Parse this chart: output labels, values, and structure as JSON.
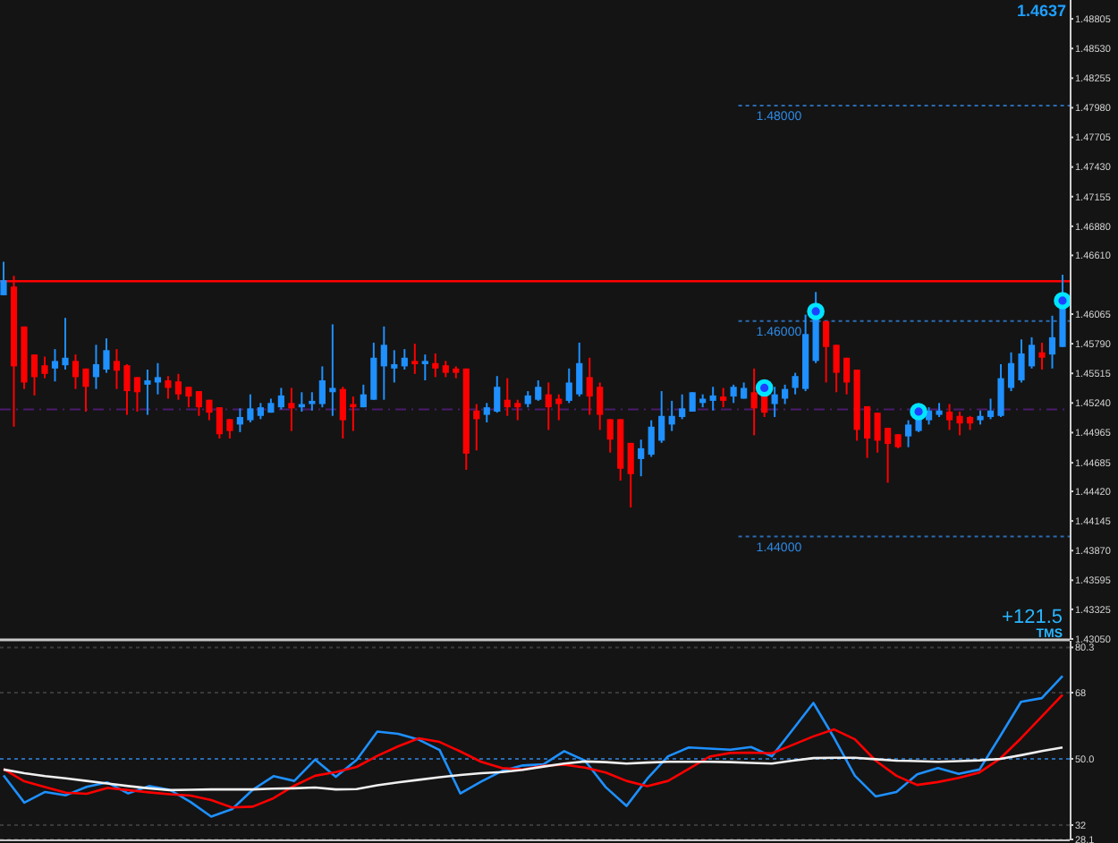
{
  "chart_data": [
    {
      "type": "candlestick",
      "ylim": [
        1.4305,
        1.4898
      ],
      "tick_labels": "y",
      "yticks": [
        {
          "value": 1.48805,
          "label": "1.48805"
        },
        {
          "value": 1.4853,
          "label": "1.48530"
        },
        {
          "value": 1.48255,
          "label": "1.48255"
        },
        {
          "value": 1.4798,
          "label": "1.47980"
        },
        {
          "value": 1.47705,
          "label": "1.47705"
        },
        {
          "value": 1.4743,
          "label": "1.47430"
        },
        {
          "value": 1.47155,
          "label": "1.47155"
        },
        {
          "value": 1.4688,
          "label": "1.46880"
        },
        {
          "value": 1.4661,
          "label": "1.46610"
        },
        {
          "value": 1.46065,
          "label": "1.46065"
        },
        {
          "value": 1.4579,
          "label": "1.45790"
        },
        {
          "value": 1.45515,
          "label": "1.45515"
        },
        {
          "value": 1.4524,
          "label": "1.45240"
        },
        {
          "value": 1.44965,
          "label": "1.44965"
        },
        {
          "value": 1.44685,
          "label": "1.44685"
        },
        {
          "value": 1.4442,
          "label": "1.44420"
        },
        {
          "value": 1.44145,
          "label": "1.44145"
        },
        {
          "value": 1.4387,
          "label": "1.43870"
        },
        {
          "value": 1.43595,
          "label": "1.43595"
        },
        {
          "value": 1.43325,
          "label": "1.43325"
        },
        {
          "value": 1.4305,
          "label": "1.43050"
        }
      ],
      "categories": [
        null,
        null,
        null,
        null,
        null,
        null,
        null,
        null,
        null,
        null,
        null,
        null,
        null,
        null,
        null,
        null,
        null,
        null,
        null,
        null,
        null,
        null,
        null,
        null,
        null,
        null,
        null,
        null,
        null,
        null,
        null,
        null,
        null,
        null,
        null,
        null,
        null,
        null,
        null,
        null,
        null,
        null,
        null,
        null,
        null,
        null,
        null,
        null,
        null,
        null,
        null,
        null,
        null,
        null,
        null,
        null,
        null,
        null,
        null,
        null,
        null,
        null,
        null,
        null,
        null,
        null,
        null,
        null,
        null,
        null,
        null,
        null,
        null,
        null,
        null,
        null,
        null,
        null,
        null,
        null,
        null,
        null,
        null,
        null,
        null,
        null,
        null,
        null,
        null,
        null,
        null,
        null,
        null,
        null,
        null,
        null,
        null,
        null,
        null,
        null,
        null,
        null,
        null,
        null
      ],
      "ohlc": [
        [
          1.4624,
          1.4655,
          1.4624,
          1.4638
        ],
        [
          1.4632,
          1.4642,
          1.4502,
          1.4558
        ],
        [
          1.4595,
          1.4595,
          1.4537,
          1.4543
        ],
        [
          1.4569,
          1.4569,
          1.4531,
          1.4548
        ],
        [
          1.4559,
          1.4567,
          1.4547,
          1.4551
        ],
        [
          1.4556,
          1.4574,
          1.4544,
          1.4563
        ],
        [
          1.4559,
          1.4603,
          1.4555,
          1.4566
        ],
        [
          1.4563,
          1.4569,
          1.4537,
          1.4548
        ],
        [
          1.4556,
          1.4556,
          1.4516,
          1.4539
        ],
        [
          1.4548,
          1.4578,
          1.4537,
          1.456
        ],
        [
          1.4555,
          1.4584,
          1.4552,
          1.4573
        ],
        [
          1.4563,
          1.4574,
          1.4537,
          1.4554
        ],
        [
          1.4559,
          1.456,
          1.4513,
          1.4535
        ],
        [
          1.4548,
          1.4548,
          1.4516,
          1.4534
        ],
        [
          1.4541,
          1.4555,
          1.4513,
          1.4545
        ],
        [
          1.4543,
          1.4561,
          1.4532,
          1.4548
        ],
        [
          1.4545,
          1.4549,
          1.4528,
          1.4538
        ],
        [
          1.4544,
          1.4551,
          1.4527,
          1.4532
        ],
        [
          1.4539,
          1.4539,
          1.452,
          1.453
        ],
        [
          1.4535,
          1.4535,
          1.4512,
          1.452
        ],
        [
          1.4527,
          1.4527,
          1.4508,
          1.4515
        ],
        [
          1.452,
          1.452,
          1.4491,
          1.4495
        ],
        [
          1.4509,
          1.4509,
          1.4491,
          1.4498
        ],
        [
          1.4504,
          1.4519,
          1.4497,
          1.4511
        ],
        [
          1.4508,
          1.4532,
          1.4506,
          1.4519
        ],
        [
          1.4512,
          1.4524,
          1.4509,
          1.452
        ],
        [
          1.4515,
          1.4528,
          1.4515,
          1.4524
        ],
        [
          1.452,
          1.4538,
          1.4518,
          1.4531
        ],
        [
          1.4524,
          1.4538,
          1.4498,
          1.4519
        ],
        [
          1.452,
          1.4534,
          1.4516,
          1.4523
        ],
        [
          1.4523,
          1.4534,
          1.4517,
          1.4526
        ],
        [
          1.4523,
          1.4558,
          1.452,
          1.4545
        ],
        [
          1.4534,
          1.4597,
          1.4512,
          1.4538
        ],
        [
          1.4537,
          1.4539,
          1.4491,
          1.4508
        ],
        [
          1.4523,
          1.453,
          1.4498,
          1.452
        ],
        [
          1.452,
          1.4541,
          1.452,
          1.4532
        ],
        [
          1.4527,
          1.458,
          1.4527,
          1.4566
        ],
        [
          1.4558,
          1.4595,
          1.4527,
          1.4578
        ],
        [
          1.4556,
          1.4573,
          1.4543,
          1.456
        ],
        [
          1.4558,
          1.4574,
          1.4555,
          1.4566
        ],
        [
          1.4563,
          1.4579,
          1.4551,
          1.456
        ],
        [
          1.456,
          1.4569,
          1.4545,
          1.4563
        ],
        [
          1.4561,
          1.457,
          1.4548,
          1.4556
        ],
        [
          1.4559,
          1.4563,
          1.4548,
          1.4552
        ],
        [
          1.4556,
          1.4558,
          1.4547,
          1.4552
        ],
        [
          1.4556,
          1.4556,
          1.4462,
          1.4477
        ],
        [
          1.4517,
          1.4523,
          1.448,
          1.4509
        ],
        [
          1.4513,
          1.4524,
          1.4506,
          1.452
        ],
        [
          1.4516,
          1.4549,
          1.4515,
          1.4539
        ],
        [
          1.4527,
          1.4547,
          1.4512,
          1.452
        ],
        [
          1.4524,
          1.4527,
          1.4508,
          1.452
        ],
        [
          1.4523,
          1.4535,
          1.452,
          1.4531
        ],
        [
          1.4527,
          1.4545,
          1.4526,
          1.4539
        ],
        [
          1.4532,
          1.4543,
          1.4499,
          1.452
        ],
        [
          1.4528,
          1.4532,
          1.4508,
          1.4523
        ],
        [
          1.4526,
          1.4556,
          1.4524,
          1.4543
        ],
        [
          1.4532,
          1.458,
          1.453,
          1.4561
        ],
        [
          1.4548,
          1.4566,
          1.4513,
          1.453
        ],
        [
          1.4539,
          1.4543,
          1.4499,
          1.4513
        ],
        [
          1.4509,
          1.4509,
          1.4478,
          1.449
        ],
        [
          1.4509,
          1.4509,
          1.4452,
          1.4463
        ],
        [
          1.4487,
          1.4487,
          1.4427,
          1.4458
        ],
        [
          1.4472,
          1.449,
          1.4456,
          1.4482
        ],
        [
          1.4476,
          1.4508,
          1.4474,
          1.4502
        ],
        [
          1.4489,
          1.4535,
          1.4487,
          1.4512
        ],
        [
          1.4504,
          1.4526,
          1.4498,
          1.4512
        ],
        [
          1.4511,
          1.4532,
          1.4509,
          1.4519
        ],
        [
          1.4516,
          1.4534,
          1.4516,
          1.4534
        ],
        [
          1.4524,
          1.4532,
          1.452,
          1.4528
        ],
        [
          1.4526,
          1.4539,
          1.4517,
          1.4531
        ],
        [
          1.453,
          1.4538,
          1.452,
          1.4526
        ],
        [
          1.453,
          1.4541,
          1.4524,
          1.4539
        ],
        [
          1.4528,
          1.4543,
          1.4528,
          1.4538
        ],
        [
          1.4534,
          1.4556,
          1.4494,
          1.4519
        ],
        [
          1.453,
          1.4532,
          1.4511,
          1.4515
        ],
        [
          1.4523,
          1.4539,
          1.4511,
          1.4532
        ],
        [
          1.4528,
          1.4541,
          1.4523,
          1.4537
        ],
        [
          1.4538,
          1.4552,
          1.4532,
          1.4549
        ],
        [
          1.4537,
          1.4606,
          1.4535,
          1.4588
        ],
        [
          1.4563,
          1.4627,
          1.4561,
          1.461
        ],
        [
          1.46,
          1.46,
          1.4543,
          1.4576
        ],
        [
          1.4578,
          1.4578,
          1.4534,
          1.4552
        ],
        [
          1.4566,
          1.4566,
          1.4532,
          1.4543
        ],
        [
          1.4555,
          1.4555,
          1.4489,
          1.4499
        ],
        [
          1.4521,
          1.4521,
          1.4473,
          1.4491
        ],
        [
          1.4515,
          1.4515,
          1.4478,
          1.4489
        ],
        [
          1.4501,
          1.4501,
          1.445,
          1.4486
        ],
        [
          1.4495,
          1.4495,
          1.4482,
          1.4483
        ],
        [
          1.4493,
          1.4508,
          1.4483,
          1.4504
        ],
        [
          1.4498,
          1.4517,
          1.4497,
          1.4512
        ],
        [
          1.4508,
          1.452,
          1.4504,
          1.4517
        ],
        [
          1.4513,
          1.4524,
          1.4511,
          1.4517
        ],
        [
          1.4516,
          1.4523,
          1.4499,
          1.4508
        ],
        [
          1.4512,
          1.4516,
          1.4494,
          1.4505
        ],
        [
          1.4511,
          1.4512,
          1.4499,
          1.4505
        ],
        [
          1.4508,
          1.4517,
          1.4504,
          1.4512
        ],
        [
          1.4511,
          1.4528,
          1.4509,
          1.4517
        ],
        [
          1.4512,
          1.456,
          1.4511,
          1.4547
        ],
        [
          1.4538,
          1.4571,
          1.4535,
          1.4561
        ],
        [
          1.4545,
          1.4583,
          1.4543,
          1.457
        ],
        [
          1.4558,
          1.4585,
          1.4556,
          1.4578
        ],
        [
          1.4571,
          1.458,
          1.4555,
          1.4566
        ],
        [
          1.4569,
          1.4605,
          1.4556,
          1.4585
        ],
        [
          1.4576,
          1.4643,
          1.4576,
          1.4618
        ]
      ],
      "series": [
        {
          "type": "scatter",
          "color": "#00e5ff",
          "marker": "circle",
          "values": [
            null,
            null,
            null,
            null,
            null,
            null,
            null,
            null,
            null,
            null,
            null,
            null,
            null,
            null,
            null,
            null,
            null,
            null,
            null,
            null,
            null,
            null,
            null,
            null,
            null,
            null,
            null,
            null,
            null,
            null,
            null,
            null,
            null,
            null,
            null,
            null,
            null,
            null,
            null,
            null,
            null,
            null,
            null,
            null,
            null,
            null,
            null,
            null,
            null,
            null,
            null,
            null,
            null,
            null,
            null,
            null,
            null,
            null,
            null,
            null,
            null,
            null,
            null,
            null,
            null,
            null,
            null,
            null,
            null,
            null,
            null,
            null,
            null,
            null,
            1.4538,
            null,
            null,
            null,
            null,
            1.4609,
            null,
            null,
            null,
            null,
            null,
            null,
            null,
            null,
            null,
            1.4516,
            null,
            null,
            null,
            null,
            null,
            null,
            null,
            null,
            null,
            null,
            null,
            null,
            null,
            1.4619
          ]
        }
      ],
      "ref_lines": [
        {
          "axis": "y",
          "value": 1.4637,
          "color": "#ff0000",
          "line_style": "solid"
        },
        {
          "axis": "y",
          "value": 1.48,
          "label": "1.48000",
          "color": "#2a6bb0",
          "line_style": "dotted"
        },
        {
          "axis": "y",
          "value": 1.46,
          "label": "1.46000",
          "color": "#2a6bb0",
          "line_style": "dotted"
        },
        {
          "axis": "y",
          "value": 1.44,
          "label": "1.44000",
          "color": "#2a6bb0",
          "line_style": "dotted"
        },
        {
          "axis": "y",
          "value": 1.4518,
          "color": "#4b1a6e",
          "line_style": "dashed"
        }
      ],
      "annotations": [
        "1.4637",
        "+121.5",
        "TMS"
      ]
    },
    {
      "type": "line",
      "ylim": [
        28.1,
        82.1
      ],
      "tick_labels": "y",
      "grid": "y",
      "yticks": [
        {
          "value": 80.3,
          "label": "80.3"
        },
        68,
        {
          "value": 50,
          "label": "50.0"
        },
        32,
        {
          "value": 28.1,
          "label": "28.1"
        }
      ],
      "categories": [
        null,
        null,
        null,
        null,
        null,
        null,
        null,
        null,
        null,
        null,
        null,
        null,
        null,
        null,
        null,
        null,
        null,
        null,
        null,
        null,
        null,
        null,
        null,
        null,
        null,
        null,
        null,
        null,
        null,
        null,
        null,
        null,
        null,
        null,
        null,
        null,
        null,
        null,
        null,
        null,
        null,
        null,
        null,
        null,
        null,
        null,
        null,
        null,
        null,
        null,
        null,
        null
      ],
      "series": [
        {
          "color": "#1e90ff",
          "values": [
            45.5,
            38.1,
            41.0,
            40.1,
            42.4,
            43.6,
            40.6,
            42.6,
            41.6,
            38.3,
            34.3,
            36.3,
            41.6,
            45.3,
            44.0,
            49.8,
            45.1,
            49.7,
            57.4,
            56.8,
            55.2,
            52.4,
            40.6,
            43.8,
            46.7,
            48.2,
            48.5,
            52.1,
            49.5,
            42.3,
            37.2,
            44.6,
            50.7,
            53.1,
            52.8,
            52.5,
            53.2,
            50.7,
            57.9,
            65.2,
            55.7,
            45.4,
            39.8,
            41.0,
            45.8,
            47.5,
            45.9,
            47.1,
            56.2,
            65.5,
            66.5,
            72.5
          ]
        },
        {
          "color": "#ff0000",
          "values": [
            47.2,
            43.9,
            42.3,
            40.8,
            40.5,
            42.1,
            41.5,
            40.9,
            40.4,
            40.0,
            38.8,
            36.8,
            37.0,
            39.3,
            42.7,
            45.4,
            46.4,
            47.8,
            50.8,
            53.4,
            55.6,
            54.6,
            52.0,
            49.2,
            47.5,
            47.1,
            48.1,
            48.4,
            47.6,
            46.3,
            44.0,
            42.6,
            44.0,
            47.3,
            50.6,
            51.6,
            51.7,
            51.5,
            53.8,
            56.1,
            58.0,
            55.3,
            49.5,
            45.4,
            42.9,
            43.7,
            44.8,
            46.3,
            50.1,
            55.6,
            61.5,
            67.4
          ]
        },
        {
          "color": "#f0f0f0",
          "values": [
            47.1,
            46.1,
            45.3,
            44.7,
            44.0,
            43.3,
            42.6,
            42.0,
            41.5,
            41.6,
            41.7,
            41.7,
            41.7,
            41.9,
            42.0,
            42.2,
            41.7,
            41.8,
            42.8,
            43.6,
            44.3,
            45.0,
            45.6,
            46.1,
            46.4,
            47.0,
            47.9,
            48.7,
            49.3,
            49.1,
            48.7,
            49.0,
            49.2,
            49.2,
            49.2,
            49.1,
            48.9,
            48.7,
            49.5,
            50.2,
            50.3,
            50.3,
            49.9,
            49.5,
            49.4,
            49.2,
            49.4,
            49.6,
            50.0,
            51.0,
            52.1,
            53.1
          ]
        }
      ],
      "ref_lines": [
        {
          "axis": "y",
          "value": 50,
          "color": "#2a6bb0",
          "line_style": "dotted"
        }
      ]
    }
  ]
}
